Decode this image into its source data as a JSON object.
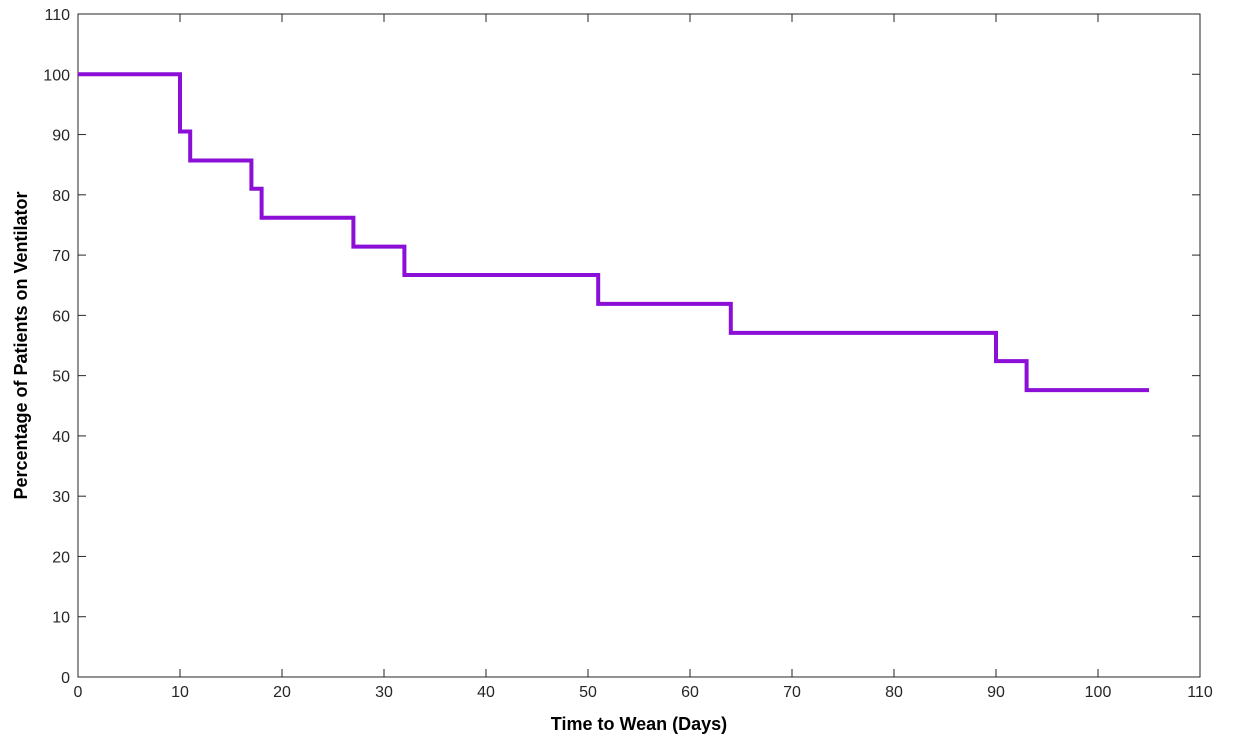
{
  "chart_data": {
    "type": "line",
    "step": true,
    "title": "",
    "xlabel": "Time to Wean (Days)",
    "ylabel": "Percentage of Patients on Ventilator",
    "xlim": [
      0,
      110
    ],
    "ylim": [
      0,
      110
    ],
    "xticks": [
      0,
      10,
      20,
      30,
      40,
      50,
      60,
      70,
      80,
      90,
      100,
      110
    ],
    "yticks": [
      0,
      10,
      20,
      30,
      40,
      50,
      60,
      70,
      80,
      90,
      100,
      110
    ],
    "grid": false,
    "box": true,
    "series": [
      {
        "color": "#8b0fd6",
        "x": [
          0,
          10,
          11,
          17,
          18,
          27,
          32,
          51,
          64,
          90,
          93,
          105
        ],
        "y": [
          100,
          90.5,
          85.7,
          81.0,
          76.2,
          71.4,
          66.7,
          61.9,
          57.1,
          52.4,
          47.6,
          47.6
        ]
      }
    ]
  }
}
